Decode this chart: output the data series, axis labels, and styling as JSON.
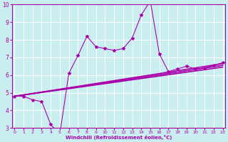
{
  "background_color": "#c8eef0",
  "grid_color": "#ffffff",
  "line_color": "#aa00aa",
  "x_min": 0,
  "x_max": 23,
  "y_min": 3,
  "y_max": 10,
  "xlabel": "Windchill (Refroidissement éolien,°C)",
  "xlabel_color": "#aa00aa",
  "tick_color": "#aa00aa",
  "x_ticks": [
    0,
    1,
    2,
    3,
    4,
    5,
    6,
    7,
    8,
    9,
    10,
    11,
    12,
    13,
    14,
    15,
    16,
    17,
    18,
    19,
    20,
    21,
    22,
    23
  ],
  "y_ticks": [
    3,
    4,
    5,
    6,
    7,
    8,
    9,
    10
  ],
  "series1_x": [
    0,
    1,
    2,
    3,
    4,
    5,
    6,
    7,
    8,
    9,
    10,
    11,
    12,
    13,
    14,
    15,
    16,
    17,
    18,
    19,
    20,
    21,
    22,
    23
  ],
  "series1_y": [
    4.8,
    4.8,
    4.6,
    4.5,
    3.2,
    2.65,
    6.1,
    7.1,
    8.2,
    7.6,
    7.5,
    7.4,
    7.5,
    8.1,
    9.4,
    10.2,
    7.2,
    6.2,
    6.35,
    6.5,
    6.35,
    6.4,
    6.55,
    6.7
  ],
  "series2_x": [
    0,
    23
  ],
  "series2_y": [
    4.8,
    6.65
  ],
  "series3_x": [
    0,
    23
  ],
  "series3_y": [
    4.8,
    6.55
  ],
  "series4_x": [
    0,
    23
  ],
  "series4_y": [
    4.8,
    6.45
  ]
}
